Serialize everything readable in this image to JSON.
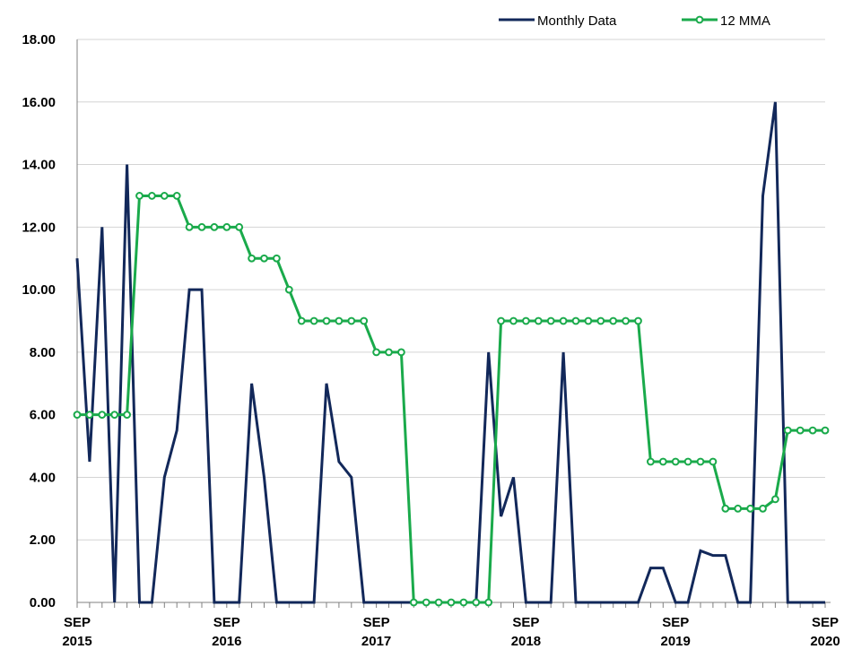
{
  "chart_data": {
    "type": "line",
    "title": "",
    "xlabel": "",
    "ylabel": "",
    "ylim": [
      0,
      18
    ],
    "yticks": [
      "0.00",
      "2.00",
      "4.00",
      "6.00",
      "8.00",
      "10.00",
      "12.00",
      "14.00",
      "16.00",
      "18.00"
    ],
    "x_start": "SEP 2015",
    "x_count": 61,
    "xticks": [
      {
        "index": 0,
        "month": "SEP",
        "year": "2015"
      },
      {
        "index": 12,
        "month": "SEP",
        "year": "2016"
      },
      {
        "index": 24,
        "month": "SEP",
        "year": "2017"
      },
      {
        "index": 36,
        "month": "SEP",
        "year": "2018"
      },
      {
        "index": 48,
        "month": "SEP",
        "year": "2019"
      },
      {
        "index": 60,
        "month": "SEP",
        "year": "2020"
      }
    ],
    "grid": true,
    "legend_position": "top-right",
    "series": [
      {
        "name": "Monthly Data",
        "color": "#12285a",
        "marker": "none",
        "values": [
          11,
          4.5,
          12,
          0,
          14,
          0,
          0,
          4,
          5.5,
          10,
          10,
          0,
          0,
          0,
          7,
          4,
          0,
          0,
          0,
          0,
          7,
          4.5,
          4,
          0,
          0,
          0,
          0,
          0,
          0,
          0,
          0,
          0,
          0,
          8,
          2.75,
          4,
          0,
          0,
          0,
          8,
          0,
          0,
          0,
          0,
          0,
          0,
          1.1,
          1.1,
          0,
          0,
          1.65,
          1.5,
          1.5,
          0,
          0,
          13,
          16,
          0,
          0,
          0,
          0
        ]
      },
      {
        "name": "12 MMA",
        "color": "#1aaa4b",
        "marker": "circle",
        "start_index": 0,
        "values": [
          6,
          6,
          6,
          6,
          6,
          13,
          13,
          13,
          13,
          12,
          12,
          12,
          12,
          12,
          11,
          11,
          11,
          10,
          9,
          9,
          9,
          9,
          9,
          9,
          8,
          8,
          8,
          0,
          0,
          0,
          0,
          0,
          0,
          0,
          9,
          9,
          9,
          9,
          9,
          9,
          9,
          9,
          9,
          9,
          9,
          9,
          4.5,
          4.5,
          4.5,
          4.5,
          4.5,
          4.5,
          3,
          3,
          3,
          3,
          3.3,
          5.5,
          5.5,
          5.5,
          5.5
        ]
      }
    ]
  }
}
